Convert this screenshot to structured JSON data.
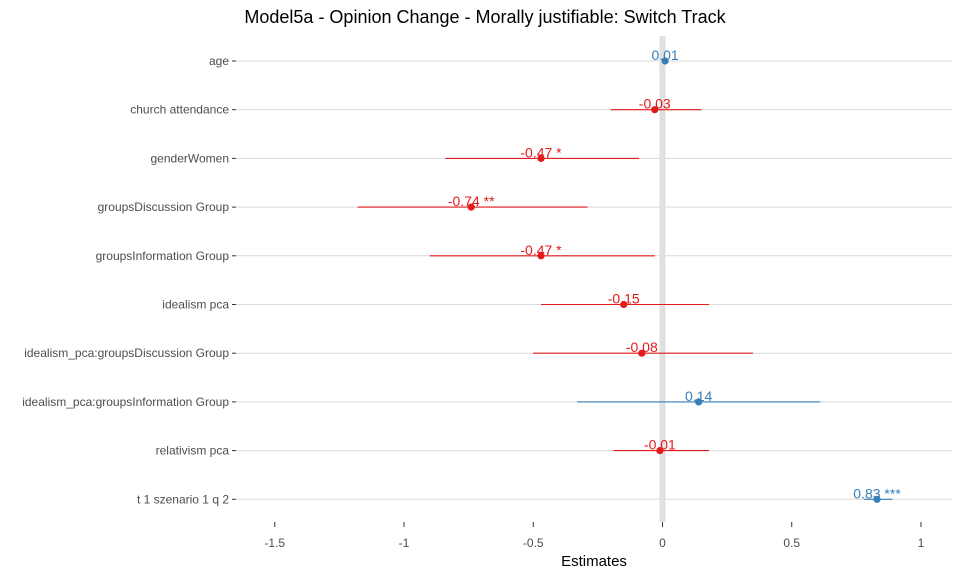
{
  "chart_data": {
    "type": "forest",
    "title": "Model5a - Opinion Change - Morally justifiable: Switch Track",
    "xlabel": "Estimates",
    "ylabel": "",
    "xlim": [
      -1.65,
      1.12
    ],
    "x_ticks": [
      -1.5,
      -1,
      -0.5,
      0,
      0.5,
      1
    ],
    "x_tick_labels": [
      "-1.5",
      "-1",
      "-0.5",
      "0",
      "0.5",
      "1"
    ],
    "grid": true,
    "colors": {
      "positive": "#377eb8",
      "negative": "#e41a1c",
      "zero_line": "#e0e0e0",
      "grid": "#d9d9d9"
    },
    "terms": [
      {
        "name": "age",
        "estimate": 0.01,
        "ci": [
          0.0,
          0.02
        ],
        "label": "0.01"
      },
      {
        "name": "church attendance",
        "estimate": -0.03,
        "ci": [
          -0.2,
          0.15
        ],
        "label": "-0.03"
      },
      {
        "name": "genderWomen",
        "estimate": -0.47,
        "ci": [
          -0.84,
          -0.09
        ],
        "label": "-0.47 *"
      },
      {
        "name": "groupsDiscussion Group",
        "estimate": -0.74,
        "ci": [
          -1.18,
          -0.29
        ],
        "label": "-0.74 **"
      },
      {
        "name": "groupsInformation Group",
        "estimate": -0.47,
        "ci": [
          -0.9,
          -0.03
        ],
        "label": "-0.47 *"
      },
      {
        "name": "idealism pca",
        "estimate": -0.15,
        "ci": [
          -0.47,
          0.18
        ],
        "label": "-0.15"
      },
      {
        "name": "idealism_pca:groupsDiscussion Group",
        "estimate": -0.08,
        "ci": [
          -0.5,
          0.35
        ],
        "label": "-0.08"
      },
      {
        "name": "idealism_pca:groupsInformation Group",
        "estimate": 0.14,
        "ci": [
          -0.33,
          0.61
        ],
        "label": "0.14"
      },
      {
        "name": "relativism pca",
        "estimate": -0.01,
        "ci": [
          -0.19,
          0.18
        ],
        "label": "-0.01"
      },
      {
        "name": "t 1 szenario 1 q 2",
        "estimate": 0.83,
        "ci": [
          0.78,
          0.89
        ],
        "label": "0.83 ***"
      }
    ]
  }
}
